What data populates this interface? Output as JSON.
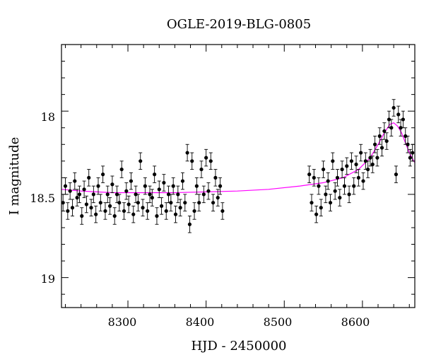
{
  "chart_data": {
    "type": "scatter",
    "title": "OGLE-2019-BLG-0805",
    "xlabel": "HJD - 2450000",
    "ylabel": "I magnitude",
    "xlim": [
      8215,
      8667
    ],
    "ylim": [
      19.18,
      17.6
    ],
    "y_inverted": true,
    "grid": false,
    "legend": "none",
    "x_major_ticks": [
      8300,
      8400,
      8500,
      8600
    ],
    "x_minor_ticks": [
      8220,
      8240,
      8260,
      8280,
      8320,
      8340,
      8360,
      8380,
      8420,
      8440,
      8460,
      8480,
      8520,
      8540,
      8560,
      8580,
      8620,
      8640,
      8660
    ],
    "y_major_ticks": [
      18,
      18.5,
      19
    ],
    "y_minor_ticks": [
      17.7,
      17.8,
      17.9,
      18.1,
      18.2,
      18.3,
      18.4,
      18.6,
      18.7,
      18.8,
      18.9,
      19.1
    ],
    "x_tick_labels": [
      "8300",
      "8400",
      "8500",
      "8600"
    ],
    "y_tick_labels": [
      "18",
      "18.5",
      "19"
    ],
    "colors": {
      "points": "#000000",
      "model": "#ff00ff",
      "axes": "#000000"
    },
    "series": [
      {
        "kind": "data",
        "x": [
          8217,
          8220,
          8223,
          8226,
          8229,
          8232,
          8235,
          8238,
          8241,
          8244,
          8247,
          8250,
          8253,
          8256,
          8259,
          8262,
          8265,
          8268,
          8271,
          8274,
          8277,
          8280,
          8283,
          8286,
          8289,
          8292,
          8295,
          8298,
          8301,
          8304,
          8307,
          8310,
          8313,
          8316,
          8319,
          8322,
          8325,
          8328,
          8331,
          8334,
          8337,
          8340,
          8343,
          8346,
          8349,
          8352,
          8355,
          8358,
          8361,
          8364,
          8367,
          8370,
          8373,
          8376,
          8379,
          8382,
          8385,
          8388,
          8391,
          8394,
          8397,
          8400,
          8403,
          8406,
          8409,
          8412,
          8415,
          8418,
          8421,
          8532,
          8535,
          8538,
          8541,
          8544,
          8547,
          8550,
          8553,
          8556,
          8559,
          8562,
          8565,
          8568,
          8571,
          8574,
          8577,
          8580,
          8583,
          8586,
          8589,
          8592,
          8595,
          8598,
          8601,
          8604,
          8607,
          8610,
          8613,
          8616,
          8619,
          8622,
          8625,
          8628,
          8631,
          8634,
          8637,
          8640,
          8643,
          8646,
          8649,
          8652,
          8655,
          8658,
          8661,
          8664
        ],
        "y": [
          18.55,
          18.45,
          18.6,
          18.48,
          18.58,
          18.42,
          18.52,
          18.5,
          18.63,
          18.47,
          18.56,
          18.4,
          18.58,
          18.5,
          18.62,
          18.45,
          18.55,
          18.38,
          18.6,
          18.5,
          18.57,
          18.44,
          18.63,
          18.5,
          18.55,
          18.35,
          18.6,
          18.48,
          18.56,
          18.42,
          18.62,
          18.5,
          18.55,
          18.3,
          18.58,
          18.45,
          18.6,
          18.5,
          18.52,
          18.38,
          18.63,
          18.47,
          18.57,
          18.43,
          18.6,
          18.5,
          18.55,
          18.45,
          18.62,
          18.5,
          18.58,
          18.42,
          18.55,
          18.25,
          18.68,
          18.3,
          18.6,
          18.45,
          18.55,
          18.35,
          18.5,
          18.28,
          18.48,
          18.3,
          18.55,
          18.4,
          18.52,
          18.45,
          18.6,
          18.38,
          18.55,
          18.4,
          18.62,
          18.45,
          18.58,
          18.35,
          18.5,
          18.42,
          18.55,
          18.3,
          18.48,
          18.4,
          18.52,
          18.35,
          18.45,
          18.33,
          18.5,
          18.3,
          18.45,
          18.32,
          18.4,
          18.25,
          18.42,
          18.3,
          18.35,
          18.28,
          18.32,
          18.2,
          18.28,
          18.15,
          18.22,
          18.12,
          18.18,
          18.05,
          18.1,
          17.98,
          18.38,
          18.02,
          18.1,
          18.05,
          18.15,
          18.2,
          18.28,
          18.25
        ],
        "error": [
          0.05,
          0.05,
          0.05,
          0.05,
          0.05,
          0.05,
          0.05,
          0.05,
          0.05,
          0.05,
          0.05,
          0.05,
          0.05,
          0.05,
          0.05,
          0.05,
          0.05,
          0.05,
          0.05,
          0.05,
          0.05,
          0.05,
          0.05,
          0.05,
          0.05,
          0.05,
          0.05,
          0.05,
          0.05,
          0.05,
          0.05,
          0.05,
          0.05,
          0.05,
          0.05,
          0.05,
          0.05,
          0.05,
          0.05,
          0.05,
          0.05,
          0.05,
          0.05,
          0.05,
          0.05,
          0.05,
          0.05,
          0.05,
          0.05,
          0.05,
          0.05,
          0.05,
          0.05,
          0.05,
          0.05,
          0.05,
          0.05,
          0.05,
          0.05,
          0.05,
          0.05,
          0.05,
          0.05,
          0.05,
          0.05,
          0.05,
          0.05,
          0.05,
          0.05,
          0.05,
          0.05,
          0.05,
          0.05,
          0.05,
          0.05,
          0.05,
          0.05,
          0.05,
          0.05,
          0.05,
          0.05,
          0.05,
          0.05,
          0.05,
          0.05,
          0.05,
          0.05,
          0.05,
          0.05,
          0.05,
          0.05,
          0.05,
          0.05,
          0.05,
          0.05,
          0.05,
          0.05,
          0.05,
          0.05,
          0.05,
          0.05,
          0.05,
          0.05,
          0.05,
          0.05,
          0.05,
          0.05,
          0.05,
          0.05,
          0.05,
          0.05,
          0.05,
          0.05,
          0.05
        ]
      },
      {
        "kind": "model",
        "x": [
          8215,
          8240,
          8280,
          8320,
          8360,
          8400,
          8440,
          8480,
          8520,
          8550,
          8575,
          8595,
          8610,
          8620,
          8628,
          8635,
          8640,
          8645,
          8650,
          8655,
          8660,
          8667
        ],
        "y": [
          18.47,
          18.48,
          18.49,
          18.49,
          18.49,
          18.485,
          18.48,
          18.47,
          18.45,
          18.43,
          18.4,
          18.35,
          18.28,
          18.2,
          18.13,
          18.08,
          18.07,
          18.09,
          18.13,
          18.19,
          18.25,
          18.31
        ]
      }
    ]
  }
}
